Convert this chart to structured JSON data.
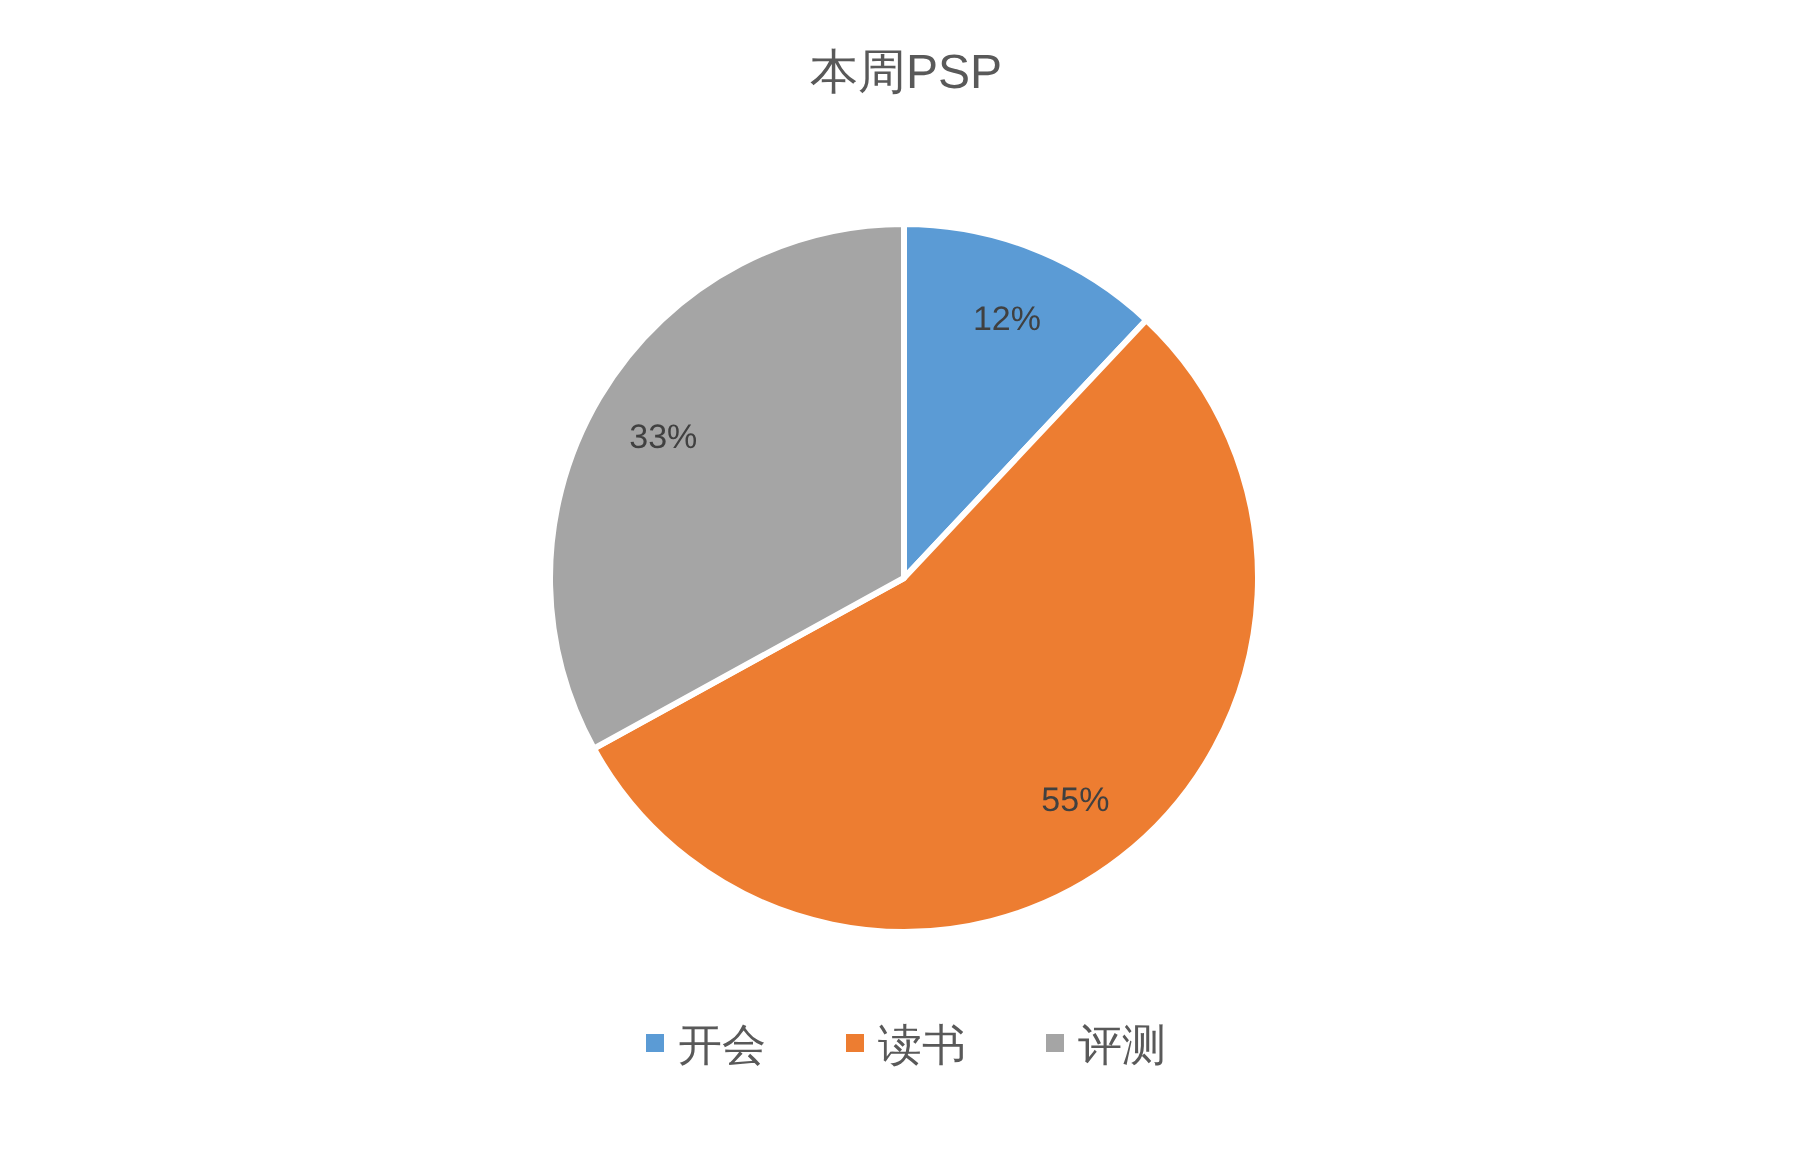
{
  "chart_data": {
    "type": "pie",
    "title": "本周PSP",
    "categories": [
      "开会",
      "读书",
      "评测"
    ],
    "values": [
      12,
      55,
      33
    ],
    "colors": [
      "#5b9bd5",
      "#ed7d31",
      "#a5a5a5"
    ],
    "value_labels": [
      "12%",
      "55%",
      "33%"
    ],
    "legend": "bottom"
  }
}
